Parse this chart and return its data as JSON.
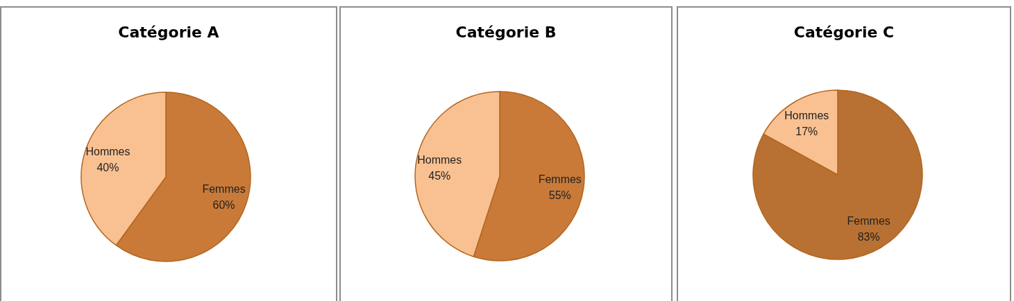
{
  "chart_data": [
    {
      "type": "pie",
      "title": "Catégorie A",
      "categories": [
        "Femmes",
        "Hommes"
      ],
      "values": [
        60,
        40
      ],
      "colors": [
        "#c97a38",
        "#f9c192"
      ],
      "value_labels": [
        "60%",
        "40%"
      ]
    },
    {
      "type": "pie",
      "title": "Catégorie B",
      "categories": [
        "Femmes",
        "Hommes"
      ],
      "values": [
        55,
        45
      ],
      "colors": [
        "#c97a38",
        "#f9c192"
      ],
      "value_labels": [
        "55%",
        "45%"
      ]
    },
    {
      "type": "pie",
      "title": "Catégorie C",
      "categories": [
        "Femmes",
        "Hommes"
      ],
      "values": [
        83,
        17
      ],
      "colors": [
        "#b87133",
        "#f9c192"
      ],
      "value_labels": [
        "83%",
        "17%"
      ]
    }
  ]
}
